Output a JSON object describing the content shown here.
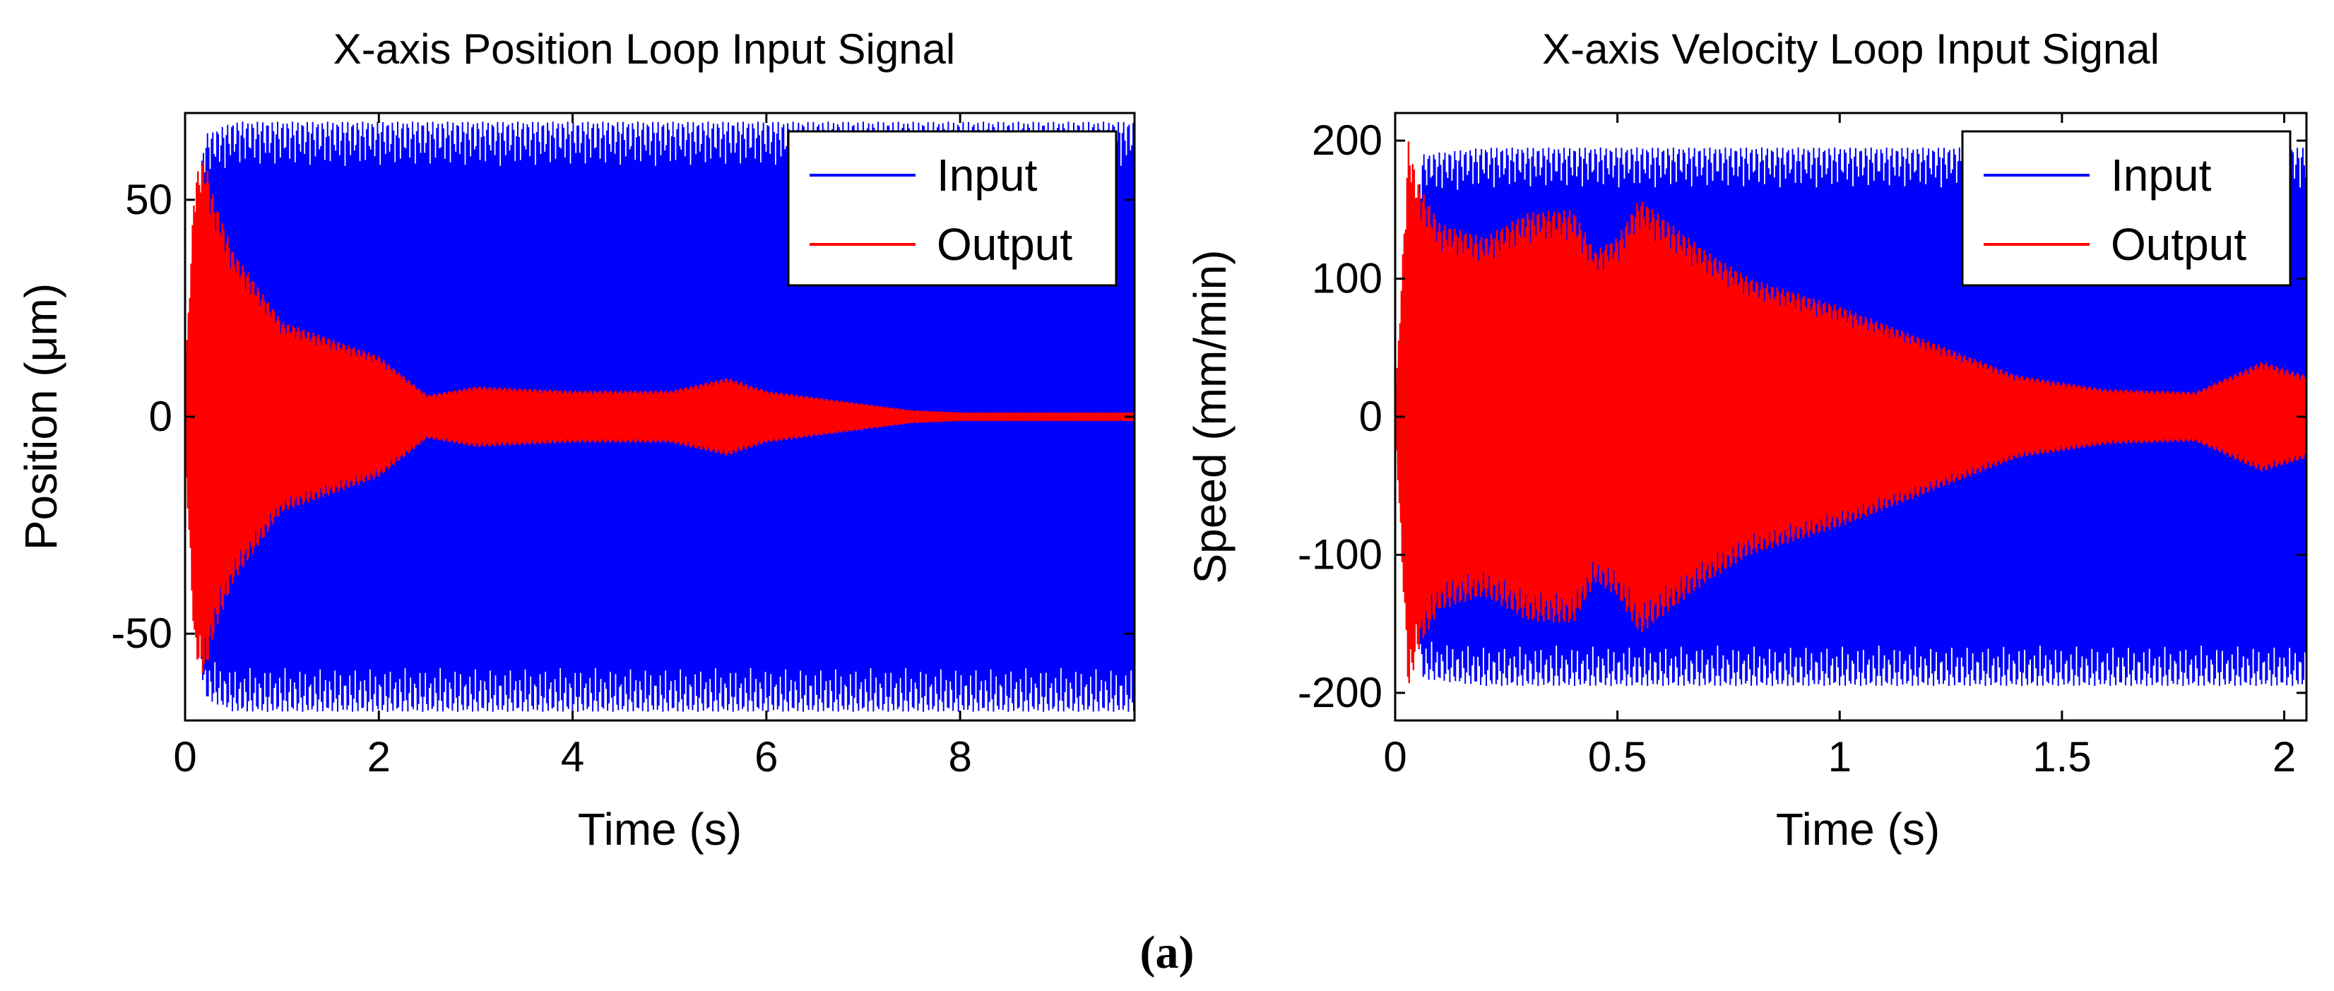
{
  "caption": "(a)",
  "chart_data": [
    {
      "type": "line",
      "title": "X-axis Position Loop Input Signal",
      "xlabel": "Time (s)",
      "ylabel": "Position (μm)",
      "xlim": [
        0,
        9.8
      ],
      "ylim": [
        -70,
        70
      ],
      "xticks": [
        0,
        2,
        4,
        6,
        8
      ],
      "xtick_labels": [
        "0",
        "2",
        "4",
        "6",
        "8"
      ],
      "yticks": [
        -50,
        0,
        50
      ],
      "ytick_labels": [
        "-50",
        "0",
        "50"
      ],
      "grid": false,
      "legend_position": "top-right",
      "series": [
        {
          "name": "Input",
          "color": "#0000ff",
          "style": "dense-oscillation",
          "x": [
            0.05,
            0.2,
            0.5,
            1,
            2,
            3,
            4,
            5,
            6,
            7,
            8,
            9,
            9.8
          ],
          "envelope": [
            -30,
            -65,
            -68,
            -68,
            -68,
            -68,
            -68,
            -68,
            -68,
            -68,
            -68,
            -68,
            -68
          ]
        },
        {
          "name": "Output",
          "color": "#ff0000",
          "style": "dense-oscillation",
          "x": [
            0,
            0.1,
            0.2,
            0.3,
            0.5,
            1,
            1.5,
            2,
            2.5,
            3,
            4,
            5,
            5.6,
            6,
            7,
            7.5,
            8,
            9.8
          ],
          "envelope": [
            8,
            55,
            60,
            50,
            38,
            22,
            18,
            14,
            5,
            7,
            6,
            6,
            9,
            6,
            3,
            1.5,
            1,
            1
          ]
        }
      ]
    },
    {
      "type": "line",
      "title": "X-axis Velocity Loop Input Signal",
      "xlabel": "Time (s)",
      "ylabel": "Speed (mm/min)",
      "xlim": [
        0,
        2.05
      ],
      "ylim": [
        -220,
        220
      ],
      "xticks": [
        0,
        0.5,
        1,
        1.5,
        2
      ],
      "xtick_labels": [
        "0",
        "0.5",
        "1",
        "1.5",
        "2"
      ],
      "yticks": [
        -200,
        -100,
        0,
        100,
        200
      ],
      "ytick_labels": [
        "-200",
        "-100",
        "0",
        "100",
        "200"
      ],
      "grid": false,
      "legend_position": "top-right",
      "series": [
        {
          "name": "Input",
          "color": "#0000ff",
          "style": "dense-oscillation",
          "x": [
            0,
            0.02,
            0.06,
            0.2,
            0.5,
            1,
            1.5,
            2,
            2.05
          ],
          "envelope": [
            10,
            60,
            190,
            195,
            195,
            195,
            195,
            195,
            195
          ]
        },
        {
          "name": "Output",
          "color": "#ff0000",
          "style": "dense-oscillation",
          "x": [
            0,
            0.03,
            0.05,
            0.1,
            0.2,
            0.3,
            0.4,
            0.45,
            0.5,
            0.55,
            0.6,
            0.7,
            0.8,
            0.9,
            1,
            1.2,
            1.4,
            1.6,
            1.8,
            1.95,
            2.05
          ],
          "envelope": [
            5,
            200,
            170,
            140,
            130,
            148,
            150,
            120,
            130,
            158,
            145,
            120,
            100,
            90,
            80,
            55,
            30,
            20,
            18,
            40,
            30
          ]
        }
      ]
    }
  ]
}
